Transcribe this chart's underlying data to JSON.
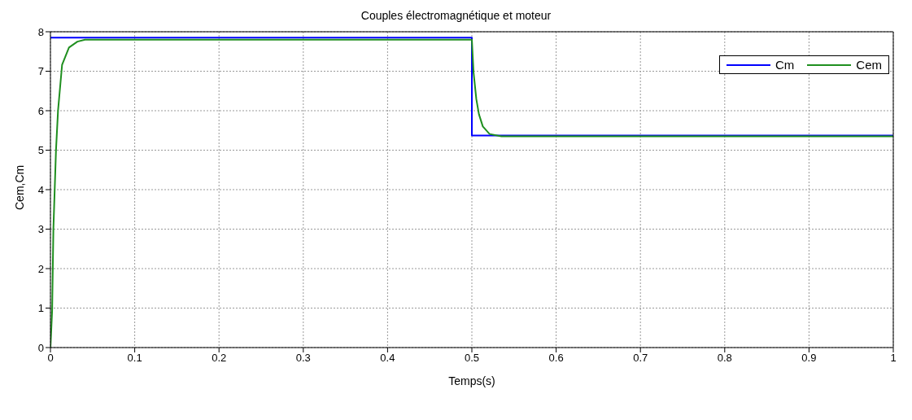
{
  "chart_data": {
    "type": "line",
    "title": "Couples électromagnétique et moteur",
    "xlabel": "Temps(s)",
    "ylabel": "Cem,Cm",
    "xlim": [
      0,
      1
    ],
    "xticks": [
      0,
      0.1,
      0.2,
      0.3,
      0.4,
      0.5,
      0.6,
      0.7,
      0.8,
      0.9,
      1
    ],
    "ylim": [
      0,
      8
    ],
    "yticks": [
      0,
      1,
      2,
      3,
      4,
      5,
      6,
      7,
      8
    ],
    "grid": true,
    "legend": "top right",
    "marker": "none",
    "line_style": "solid",
    "series": [
      {
        "name": "Cm",
        "color": "#0000ff",
        "x": [
          0,
          0.5,
          0.5,
          1
        ],
        "values": [
          7.85,
          7.85,
          5.37,
          5.37
        ]
      },
      {
        "name": "Cem",
        "color": "#1f8f1f",
        "x": [
          0,
          0.002,
          0.0035,
          0.0066,
          0.009,
          0.0138,
          0.022,
          0.032,
          0.041,
          0.06,
          0.5,
          0.502,
          0.5053,
          0.5084,
          0.513,
          0.521,
          0.535,
          0.56,
          1
        ],
        "values": [
          0,
          0.93,
          3.0,
          5.0,
          6.0,
          7.16,
          7.6,
          7.75,
          7.8,
          7.8,
          7.8,
          6.97,
          6.29,
          5.91,
          5.6,
          5.41,
          5.35,
          5.35,
          5.35
        ]
      }
    ]
  }
}
